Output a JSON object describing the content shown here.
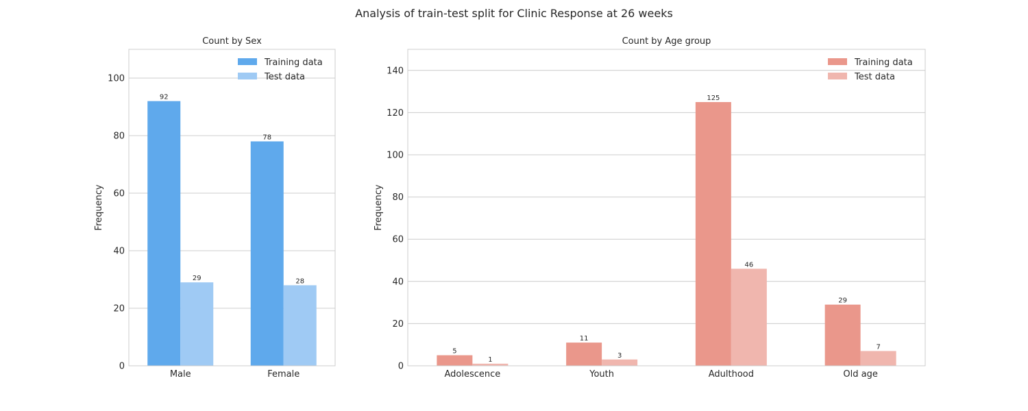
{
  "figure_title": "Analysis of train-test split for Clinic Response at 26 weeks",
  "colors": {
    "sex_training": "#5fa9ec",
    "sex_test": "#9fcaf4",
    "age_training": "#ea978b",
    "age_test": "#f0b6ae",
    "grid": "#cccccc",
    "frame": "#cccccc",
    "text": "#262626"
  },
  "chart_data": [
    {
      "type": "bar",
      "title": "Count by Sex",
      "xlabel": "",
      "ylabel": "Frequency",
      "categories": [
        "Male",
        "Female"
      ],
      "series": [
        {
          "name": "Training data",
          "values": [
            92,
            78
          ]
        },
        {
          "name": "Test data",
          "values": [
            29,
            28
          ]
        }
      ],
      "ylim": [
        0,
        110
      ],
      "yticks": [
        0,
        20,
        40,
        60,
        80,
        100
      ],
      "grid": true,
      "legend": "top-right",
      "data_labels": true
    },
    {
      "type": "bar",
      "title": "Count by Age group",
      "xlabel": "",
      "ylabel": "Frequency",
      "categories": [
        "Adolescence",
        "Youth",
        "Adulthood",
        "Old age"
      ],
      "series": [
        {
          "name": "Training data",
          "values": [
            5,
            11,
            125,
            29
          ]
        },
        {
          "name": "Test data",
          "values": [
            1,
            3,
            46,
            7
          ]
        }
      ],
      "ylim": [
        0,
        150
      ],
      "yticks": [
        0,
        20,
        40,
        60,
        80,
        100,
        120,
        140
      ],
      "grid": true,
      "legend": "top-right",
      "data_labels": true
    }
  ]
}
